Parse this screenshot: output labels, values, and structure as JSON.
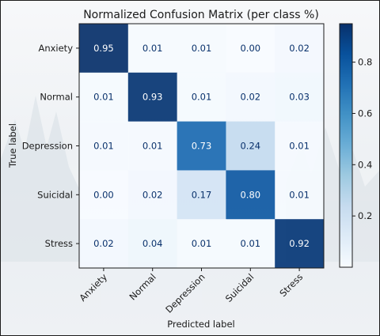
{
  "chart_data": {
    "type": "heatmap",
    "title": "Normalized Confusion Matrix (per class %)",
    "xlabel": "Predicted label",
    "ylabel": "True label",
    "x_categories": [
      "Anxiety",
      "Normal",
      "Depression",
      "Suicidal",
      "Stress"
    ],
    "y_categories": [
      "Anxiety",
      "Normal",
      "Depression",
      "Suicidal",
      "Stress"
    ],
    "values": [
      [
        0.95,
        0.01,
        0.01,
        0.0,
        0.02
      ],
      [
        0.01,
        0.93,
        0.01,
        0.02,
        0.03
      ],
      [
        0.01,
        0.01,
        0.73,
        0.24,
        0.01
      ],
      [
        0.0,
        0.02,
        0.17,
        0.8,
        0.01
      ],
      [
        0.02,
        0.04,
        0.01,
        0.01,
        0.92
      ]
    ],
    "value_format": "0.00",
    "colormap": "Blues",
    "colorbar": {
      "range": [
        0.0,
        0.95
      ],
      "ticks": [
        0.2,
        0.4,
        0.6,
        0.8
      ],
      "tick_labels": [
        "0.2",
        "0.4",
        "0.6",
        "0.8"
      ]
    },
    "grid": false,
    "colors": {
      "light": "#f7fbff",
      "dark": "#08306b",
      "text_dark": "#08306b",
      "text_light": "#ffffff"
    }
  }
}
